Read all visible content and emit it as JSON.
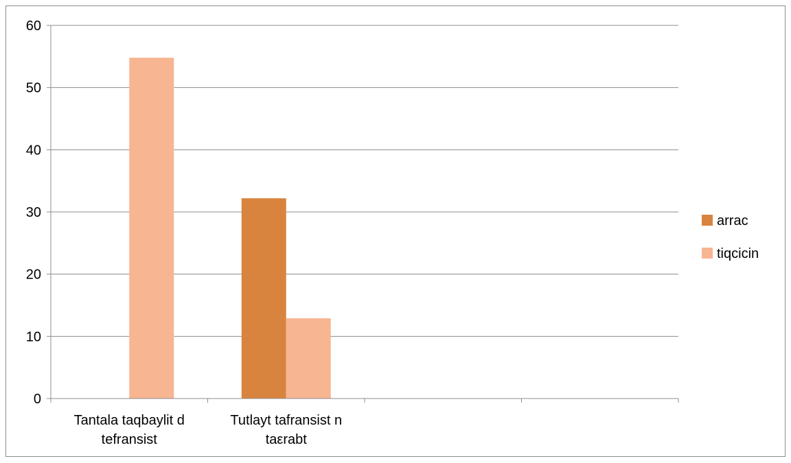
{
  "chart_data": {
    "type": "bar",
    "categories": [
      [
        "Tantala taqbaylit d",
        "tefransist"
      ],
      [
        "Tutlayt tafransist n",
        "taεrabt"
      ],
      [],
      []
    ],
    "series": [
      {
        "name": "arrac",
        "values": [
          null,
          32.2,
          null,
          null
        ],
        "color": "#D9843E"
      },
      {
        "name": "tiqcicin",
        "values": [
          54.8,
          12.9,
          null,
          null
        ],
        "color": "#F8B592"
      }
    ],
    "ylim": [
      0,
      60
    ],
    "yticks": [
      0,
      10,
      20,
      30,
      40,
      50,
      60
    ],
    "grid": true,
    "legend_position": "right",
    "title": "",
    "xlabel": "",
    "ylabel": ""
  }
}
